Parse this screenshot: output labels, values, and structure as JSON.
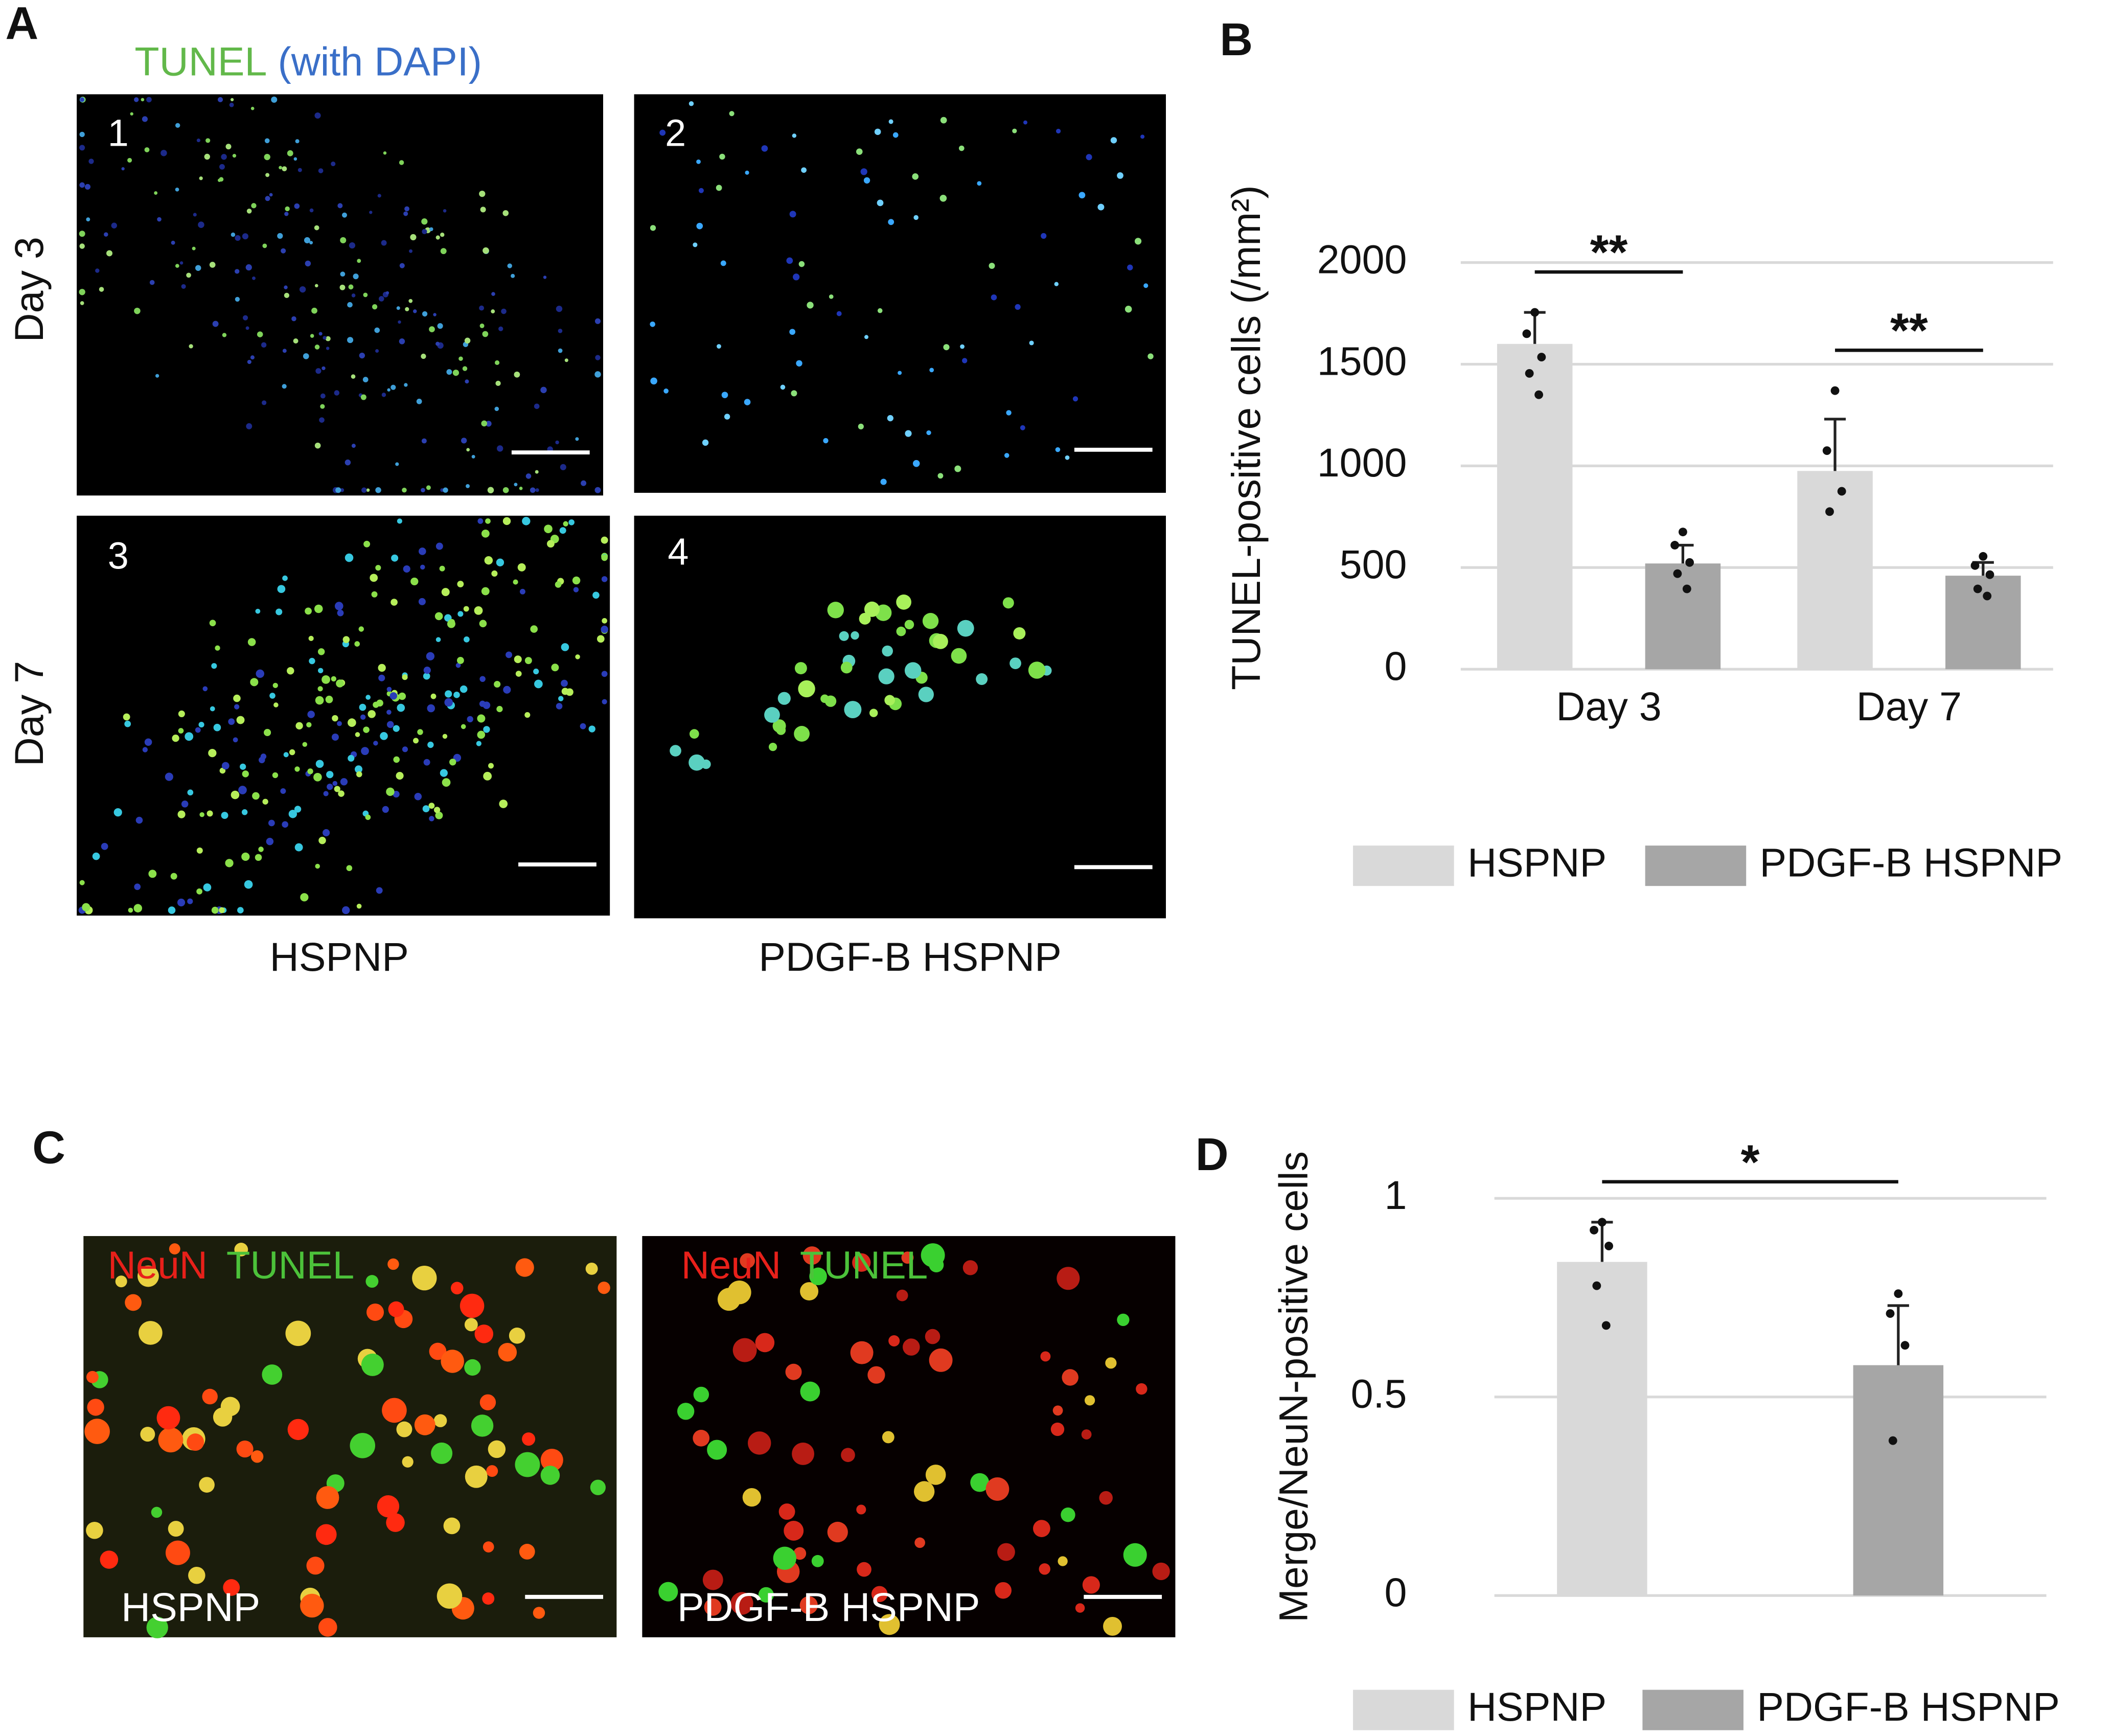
{
  "panel_labels": [
    "A",
    "B",
    "C",
    "D"
  ],
  "panel_a": {
    "legend": [
      "TUNEL",
      "(with DAPI)"
    ],
    "image_numbers": [
      "1",
      "2",
      "3",
      "4"
    ],
    "row_labels": [
      "Day 3",
      "Day 7"
    ],
    "column_labels": [
      "HSPNP",
      "PDGF-B HSPNP"
    ]
  },
  "panel_c": {
    "stains": [
      "NeuN",
      "TUNEL"
    ],
    "image_labels": [
      "HSPNP",
      "PDGF-B HSPNP"
    ]
  },
  "chart_data": [
    {
      "type": "bar",
      "y_label": "TUNEL-positive cells (/mm²)",
      "categories": [
        "Day 3",
        "Day 7"
      ],
      "series": [
        {
          "name": "HSPNP",
          "color": "#d9d9d9",
          "values": [
            1600,
            975
          ],
          "errors": [
            155,
            255
          ],
          "points": [
            [
              1755,
              1650,
              1535,
              1455,
              1350
            ],
            [
              1370,
              1075,
              875,
              775
            ]
          ]
        },
        {
          "name": "PDGF-B HSPNP",
          "color": "#a6a6a6",
          "values": [
            520,
            460
          ],
          "errors": [
            90,
            65
          ],
          "points": [
            [
              675,
              610,
              525,
              470,
              395
            ],
            [
              555,
              510,
              465,
              395,
              360
            ]
          ]
        }
      ],
      "ylim": [
        0,
        2000
      ],
      "yticks": [
        0,
        500,
        1000,
        1500,
        2000
      ],
      "grid": true,
      "annotations": [
        "**",
        "**"
      ],
      "legend": "bottom"
    },
    {
      "type": "bar",
      "y_label": "Merge/NeuN-positive cells",
      "categories": [
        null
      ],
      "series": [
        {
          "name": "HSPNP",
          "color": "#d9d9d9",
          "values": [
            0.84
          ],
          "errors": [
            0.1
          ],
          "points": [
            [
              0.94,
              0.92,
              0.88,
              0.78,
              0.68
            ]
          ]
        },
        {
          "name": "PDGF-B HSPNP",
          "color": "#a6a6a6",
          "values": [
            0.58
          ],
          "errors": [
            0.15
          ],
          "points": [
            [
              0.76,
              0.71,
              0.63,
              0.39
            ]
          ]
        }
      ],
      "ylim": [
        0,
        1
      ],
      "yticks": [
        0,
        0.5,
        1
      ],
      "grid": true,
      "annotations": [
        "*"
      ],
      "legend": "bottom"
    }
  ]
}
